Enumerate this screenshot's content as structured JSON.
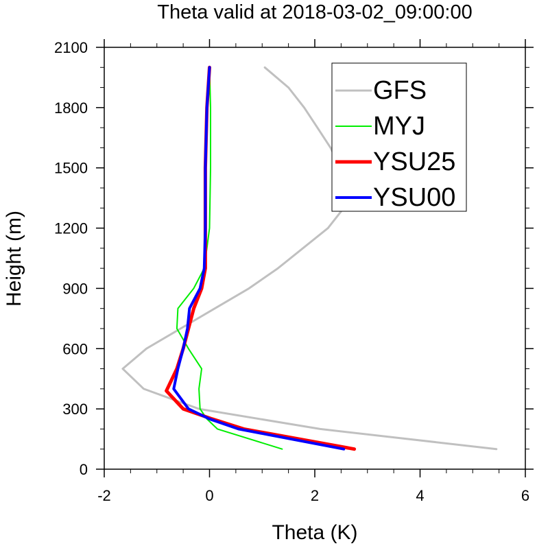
{
  "chart_data": {
    "type": "line",
    "title": "Theta valid at 2018-03-02_09:00:00",
    "xlabel": "Theta (K)",
    "ylabel": "Height (m)",
    "xlim": [
      -2,
      6
    ],
    "ylim": [
      0,
      2100
    ],
    "x_ticks": [
      -2,
      0,
      2,
      4,
      6
    ],
    "y_ticks": [
      0,
      300,
      600,
      900,
      1200,
      1500,
      1800,
      2100
    ],
    "grid": false,
    "legend": "top-right",
    "series": [
      {
        "name": "GFS",
        "color": "#c0c0c0",
        "width": 3,
        "points": [
          [
            5.45,
            100
          ],
          [
            2.1,
            200
          ],
          [
            -0.2,
            300
          ],
          [
            -1.25,
            400
          ],
          [
            -1.65,
            500
          ],
          [
            -1.2,
            600
          ],
          [
            -0.55,
            700
          ],
          [
            0.1,
            800
          ],
          [
            0.75,
            900
          ],
          [
            1.3,
            1000
          ],
          [
            2.25,
            1200
          ],
          [
            2.55,
            1300
          ],
          [
            2.55,
            1400
          ],
          [
            2.48,
            1500
          ],
          [
            2.3,
            1600
          ],
          [
            2.05,
            1700
          ],
          [
            1.8,
            1800
          ],
          [
            1.5,
            1900
          ],
          [
            1.05,
            2000
          ]
        ]
      },
      {
        "name": "MYJ",
        "color": "#00ee00",
        "width": 2,
        "points": [
          [
            1.38,
            100
          ],
          [
            0.15,
            200
          ],
          [
            -0.05,
            250
          ],
          [
            -0.18,
            300
          ],
          [
            -0.2,
            400
          ],
          [
            -0.15,
            500
          ],
          [
            -0.4,
            600
          ],
          [
            -0.62,
            700
          ],
          [
            -0.6,
            800
          ],
          [
            -0.3,
            900
          ],
          [
            -0.1,
            1000
          ],
          [
            0.0,
            1200
          ],
          [
            0.02,
            1500
          ],
          [
            0.02,
            1800
          ],
          [
            0.0,
            2000
          ]
        ]
      },
      {
        "name": "YSU25",
        "color": "#ff0000",
        "width": 5,
        "points": [
          [
            2.75,
            100
          ],
          [
            0.65,
            200
          ],
          [
            0.05,
            250
          ],
          [
            -0.5,
            300
          ],
          [
            -0.82,
            390
          ],
          [
            -0.62,
            500
          ],
          [
            -0.5,
            600
          ],
          [
            -0.4,
            700
          ],
          [
            -0.3,
            800
          ],
          [
            -0.15,
            900
          ],
          [
            -0.08,
            1000
          ],
          [
            -0.08,
            1200
          ],
          [
            -0.08,
            1500
          ],
          [
            -0.05,
            1800
          ],
          [
            0.0,
            2000
          ]
        ]
      },
      {
        "name": "YSU00",
        "color": "#0000ff",
        "width": 4,
        "points": [
          [
            2.55,
            100
          ],
          [
            0.55,
            200
          ],
          [
            0.0,
            250
          ],
          [
            -0.4,
            300
          ],
          [
            -0.68,
            400
          ],
          [
            -0.6,
            500
          ],
          [
            -0.5,
            600
          ],
          [
            -0.42,
            700
          ],
          [
            -0.38,
            800
          ],
          [
            -0.18,
            900
          ],
          [
            -0.1,
            1000
          ],
          [
            -0.08,
            1200
          ],
          [
            -0.08,
            1500
          ],
          [
            -0.05,
            1800
          ],
          [
            0.0,
            2000
          ]
        ]
      }
    ]
  }
}
